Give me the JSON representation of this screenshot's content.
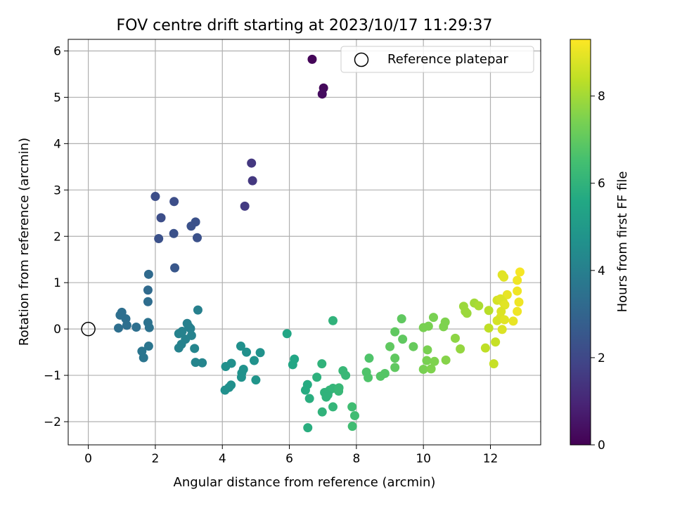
{
  "chart_data": {
    "type": "scatter",
    "title": "FOV centre drift starting at 2023/10/17 11:29:37",
    "xlabel": "Angular distance from reference (arcmin)",
    "ylabel": "Rotation from reference (arcmin)",
    "colorbar_label": "Hours from first FF file",
    "xlim": [
      -0.6,
      13.5
    ],
    "ylim": [
      -2.5,
      6.25
    ],
    "xticks": [
      0,
      2,
      4,
      6,
      8,
      10,
      12
    ],
    "yticks": [
      -2,
      -1,
      0,
      1,
      2,
      3,
      4,
      5,
      6
    ],
    "colorbar_range": [
      0,
      9.3
    ],
    "colorbar_ticks": [
      0,
      2,
      4,
      6,
      8
    ],
    "grid": true,
    "colormap": "viridis",
    "legend": {
      "label": "Reference platepar",
      "placement": "top-right"
    },
    "reference_point": {
      "x": 0,
      "y": 0
    },
    "points": [
      {
        "x": 6.68,
        "y": 5.82,
        "h": 0.1
      },
      {
        "x": 7.02,
        "y": 5.2,
        "h": 0.2
      },
      {
        "x": 6.98,
        "y": 5.07,
        "h": 0.3
      },
      {
        "x": 4.87,
        "y": 3.58,
        "h": 1.5
      },
      {
        "x": 4.9,
        "y": 3.2,
        "h": 1.5
      },
      {
        "x": 4.67,
        "y": 2.65,
        "h": 1.6
      },
      {
        "x": 2.0,
        "y": 2.86,
        "h": 2.2
      },
      {
        "x": 2.56,
        "y": 2.75,
        "h": 2.2
      },
      {
        "x": 2.17,
        "y": 2.4,
        "h": 2.2
      },
      {
        "x": 3.2,
        "y": 2.31,
        "h": 2.3
      },
      {
        "x": 3.07,
        "y": 2.22,
        "h": 2.3
      },
      {
        "x": 2.55,
        "y": 2.06,
        "h": 2.3
      },
      {
        "x": 2.1,
        "y": 1.95,
        "h": 2.3
      },
      {
        "x": 3.25,
        "y": 1.97,
        "h": 2.3
      },
      {
        "x": 2.58,
        "y": 1.32,
        "h": 2.5
      },
      {
        "x": 1.8,
        "y": 1.18,
        "h": 3.2
      },
      {
        "x": 1.78,
        "y": 0.84,
        "h": 3.2
      },
      {
        "x": 1.78,
        "y": 0.59,
        "h": 3.3
      },
      {
        "x": 1.0,
        "y": 0.36,
        "h": 3.4
      },
      {
        "x": 0.95,
        "y": 0.3,
        "h": 3.4
      },
      {
        "x": 1.12,
        "y": 0.22,
        "h": 3.4
      },
      {
        "x": 1.15,
        "y": 0.08,
        "h": 3.4
      },
      {
        "x": 1.43,
        "y": 0.04,
        "h": 3.4
      },
      {
        "x": 0.9,
        "y": 0.02,
        "h": 3.4
      },
      {
        "x": 1.78,
        "y": 0.14,
        "h": 3.5
      },
      {
        "x": 1.82,
        "y": 0.03,
        "h": 3.5
      },
      {
        "x": 1.8,
        "y": -0.37,
        "h": 3.6
      },
      {
        "x": 1.6,
        "y": -0.48,
        "h": 3.6
      },
      {
        "x": 1.65,
        "y": -0.62,
        "h": 3.6
      },
      {
        "x": 3.27,
        "y": 0.41,
        "h": 4.0
      },
      {
        "x": 2.95,
        "y": 0.12,
        "h": 4.0
      },
      {
        "x": 3.0,
        "y": 0.05,
        "h": 4.0
      },
      {
        "x": 3.05,
        "y": 0.01,
        "h": 4.0
      },
      {
        "x": 2.8,
        "y": -0.05,
        "h": 4.1
      },
      {
        "x": 2.7,
        "y": -0.1,
        "h": 4.1
      },
      {
        "x": 3.08,
        "y": -0.14,
        "h": 4.1
      },
      {
        "x": 2.9,
        "y": -0.22,
        "h": 4.1
      },
      {
        "x": 2.78,
        "y": -0.33,
        "h": 4.1
      },
      {
        "x": 2.7,
        "y": -0.41,
        "h": 4.1
      },
      {
        "x": 3.17,
        "y": -0.42,
        "h": 4.2
      },
      {
        "x": 3.2,
        "y": -0.72,
        "h": 4.2
      },
      {
        "x": 3.4,
        "y": -0.73,
        "h": 4.2
      },
      {
        "x": 4.55,
        "y": -0.37,
        "h": 4.6
      },
      {
        "x": 4.72,
        "y": -0.5,
        "h": 4.6
      },
      {
        "x": 5.13,
        "y": -0.51,
        "h": 4.7
      },
      {
        "x": 4.95,
        "y": -0.68,
        "h": 4.7
      },
      {
        "x": 4.27,
        "y": -0.74,
        "h": 4.6
      },
      {
        "x": 4.1,
        "y": -0.81,
        "h": 4.6
      },
      {
        "x": 4.63,
        "y": -0.87,
        "h": 4.7
      },
      {
        "x": 4.58,
        "y": -0.95,
        "h": 4.7
      },
      {
        "x": 4.57,
        "y": -1.04,
        "h": 4.7
      },
      {
        "x": 5.0,
        "y": -1.1,
        "h": 4.8
      },
      {
        "x": 4.26,
        "y": -1.21,
        "h": 4.6
      },
      {
        "x": 4.2,
        "y": -1.26,
        "h": 4.6
      },
      {
        "x": 4.08,
        "y": -1.32,
        "h": 4.6
      },
      {
        "x": 5.93,
        "y": -0.1,
        "h": 5.5
      },
      {
        "x": 6.15,
        "y": -0.65,
        "h": 5.5
      },
      {
        "x": 6.1,
        "y": -0.77,
        "h": 5.5
      },
      {
        "x": 7.3,
        "y": 0.18,
        "h": 6.0
      },
      {
        "x": 6.97,
        "y": -0.75,
        "h": 6.0
      },
      {
        "x": 6.82,
        "y": -1.04,
        "h": 5.9
      },
      {
        "x": 7.6,
        "y": -0.9,
        "h": 6.2
      },
      {
        "x": 7.68,
        "y": -1.0,
        "h": 6.2
      },
      {
        "x": 6.54,
        "y": -1.2,
        "h": 5.7
      },
      {
        "x": 6.48,
        "y": -1.32,
        "h": 5.7
      },
      {
        "x": 7.3,
        "y": -1.28,
        "h": 6.1
      },
      {
        "x": 7.48,
        "y": -1.27,
        "h": 6.2
      },
      {
        "x": 7.2,
        "y": -1.32,
        "h": 6.1
      },
      {
        "x": 7.05,
        "y": -1.37,
        "h": 6.0
      },
      {
        "x": 7.47,
        "y": -1.34,
        "h": 6.2
      },
      {
        "x": 7.15,
        "y": -1.42,
        "h": 6.0
      },
      {
        "x": 7.1,
        "y": -1.47,
        "h": 6.0
      },
      {
        "x": 6.6,
        "y": -1.5,
        "h": 5.8
      },
      {
        "x": 7.3,
        "y": -1.68,
        "h": 6.1
      },
      {
        "x": 6.98,
        "y": -1.79,
        "h": 6.0
      },
      {
        "x": 6.55,
        "y": -2.13,
        "h": 5.8
      },
      {
        "x": 7.87,
        "y": -1.68,
        "h": 6.4
      },
      {
        "x": 7.95,
        "y": -1.87,
        "h": 6.4
      },
      {
        "x": 7.88,
        "y": -2.1,
        "h": 6.4
      },
      {
        "x": 8.38,
        "y": -0.63,
        "h": 6.7
      },
      {
        "x": 8.3,
        "y": -0.93,
        "h": 6.7
      },
      {
        "x": 8.35,
        "y": -1.05,
        "h": 6.7
      },
      {
        "x": 8.72,
        "y": -1.02,
        "h": 6.8
      },
      {
        "x": 8.85,
        "y": -0.96,
        "h": 6.8
      },
      {
        "x": 9.35,
        "y": 0.22,
        "h": 7.0
      },
      {
        "x": 9.15,
        "y": -0.06,
        "h": 7.0
      },
      {
        "x": 9.38,
        "y": -0.22,
        "h": 7.0
      },
      {
        "x": 9.0,
        "y": -0.38,
        "h": 7.0
      },
      {
        "x": 9.15,
        "y": -0.63,
        "h": 7.0
      },
      {
        "x": 9.15,
        "y": -0.83,
        "h": 7.0
      },
      {
        "x": 9.7,
        "y": -0.38,
        "h": 7.1
      },
      {
        "x": 10.3,
        "y": 0.25,
        "h": 7.4
      },
      {
        "x": 10.65,
        "y": 0.15,
        "h": 7.5
      },
      {
        "x": 10.6,
        "y": 0.05,
        "h": 7.5
      },
      {
        "x": 10.15,
        "y": 0.06,
        "h": 7.4
      },
      {
        "x": 10.0,
        "y": 0.03,
        "h": 7.4
      },
      {
        "x": 10.12,
        "y": -0.45,
        "h": 7.4
      },
      {
        "x": 10.1,
        "y": -0.68,
        "h": 7.4
      },
      {
        "x": 10.33,
        "y": -0.7,
        "h": 7.5
      },
      {
        "x": 10.67,
        "y": -0.67,
        "h": 7.6
      },
      {
        "x": 10.0,
        "y": -0.87,
        "h": 7.4
      },
      {
        "x": 10.23,
        "y": -0.86,
        "h": 7.5
      },
      {
        "x": 10.95,
        "y": -0.2,
        "h": 7.7
      },
      {
        "x": 11.1,
        "y": -0.43,
        "h": 7.8
      },
      {
        "x": 11.2,
        "y": 0.49,
        "h": 7.9
      },
      {
        "x": 11.25,
        "y": 0.38,
        "h": 7.9
      },
      {
        "x": 11.3,
        "y": 0.34,
        "h": 7.9
      },
      {
        "x": 11.52,
        "y": 0.56,
        "h": 8.0
      },
      {
        "x": 11.65,
        "y": 0.5,
        "h": 8.1
      },
      {
        "x": 11.95,
        "y": 0.4,
        "h": 8.3
      },
      {
        "x": 11.95,
        "y": 0.02,
        "h": 8.4
      },
      {
        "x": 11.85,
        "y": -0.41,
        "h": 8.4
      },
      {
        "x": 12.15,
        "y": -0.28,
        "h": 8.5
      },
      {
        "x": 12.1,
        "y": -0.75,
        "h": 8.5
      },
      {
        "x": 12.35,
        "y": 1.17,
        "h": 8.9
      },
      {
        "x": 12.4,
        "y": 1.12,
        "h": 8.9
      },
      {
        "x": 12.88,
        "y": 1.23,
        "h": 9.2
      },
      {
        "x": 12.8,
        "y": 1.05,
        "h": 9.1
      },
      {
        "x": 12.8,
        "y": 0.82,
        "h": 9.1
      },
      {
        "x": 12.5,
        "y": 0.74,
        "h": 9.0
      },
      {
        "x": 12.2,
        "y": 0.62,
        "h": 8.7
      },
      {
        "x": 12.3,
        "y": 0.65,
        "h": 8.8
      },
      {
        "x": 12.38,
        "y": 0.58,
        "h": 8.8
      },
      {
        "x": 12.85,
        "y": 0.58,
        "h": 9.1
      },
      {
        "x": 12.43,
        "y": 0.52,
        "h": 8.9
      },
      {
        "x": 12.32,
        "y": 0.38,
        "h": 8.8
      },
      {
        "x": 12.8,
        "y": 0.38,
        "h": 9.1
      },
      {
        "x": 12.3,
        "y": 0.25,
        "h": 8.8
      },
      {
        "x": 12.2,
        "y": 0.18,
        "h": 8.7
      },
      {
        "x": 12.42,
        "y": 0.2,
        "h": 8.9
      },
      {
        "x": 12.68,
        "y": 0.17,
        "h": 9.0
      },
      {
        "x": 12.35,
        "y": -0.01,
        "h": 8.8
      }
    ]
  }
}
